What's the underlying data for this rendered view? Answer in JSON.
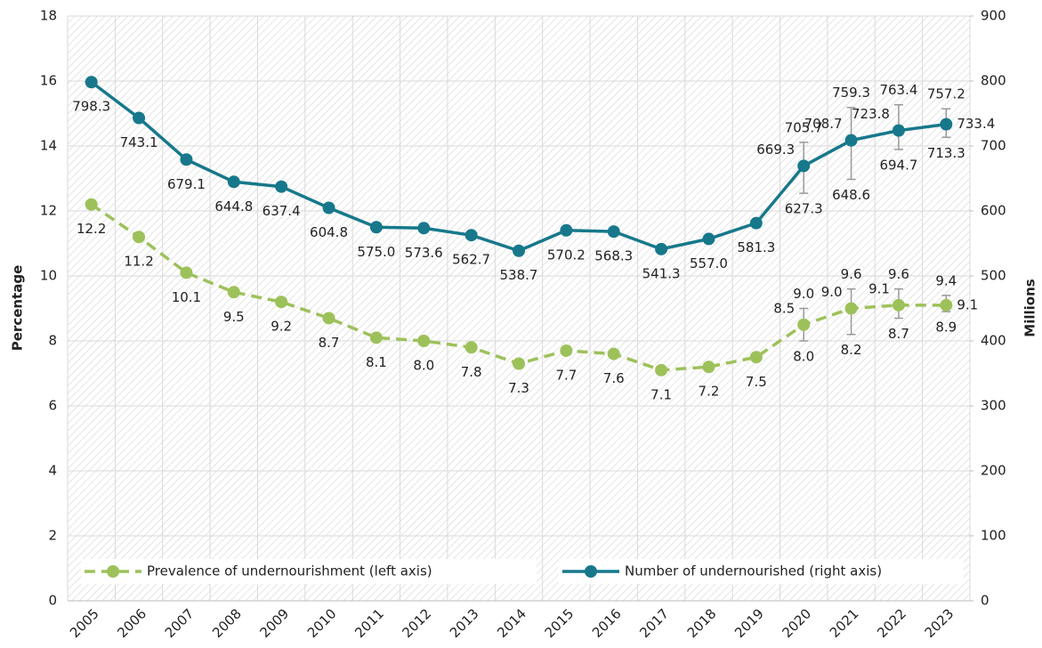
{
  "chart_data": {
    "type": "line",
    "categories": [
      "2005",
      "2006",
      "2007",
      "2008",
      "2009",
      "2010",
      "2011",
      "2012",
      "2013",
      "2014",
      "2015",
      "2016",
      "2017",
      "2018",
      "2019",
      "2020",
      "2021",
      "2022",
      "2023"
    ],
    "series": [
      {
        "name": "Prevalence of undernourishment (left axis)",
        "color": "#9dc15a",
        "dashed": true,
        "axis": "y",
        "values": [
          12.2,
          11.2,
          10.1,
          9.5,
          9.2,
          8.7,
          8.1,
          8.0,
          7.8,
          7.3,
          7.7,
          7.6,
          7.1,
          7.2,
          7.5,
          8.5,
          9.0,
          9.1,
          9.1
        ],
        "value_labels": [
          "12.2",
          "11.2",
          "10.1",
          "9.5",
          "9.2",
          "8.7",
          "8.1",
          "8.0",
          "7.8",
          "7.3",
          "7.7",
          "7.6",
          "7.1",
          "7.2",
          "7.5",
          "8.5",
          "9.0",
          "9.1",
          "9.1"
        ],
        "upper": [
          null,
          null,
          null,
          null,
          null,
          null,
          null,
          null,
          null,
          null,
          null,
          null,
          null,
          null,
          null,
          9.0,
          9.6,
          9.6,
          9.4
        ],
        "upper_labels": [
          null,
          null,
          null,
          null,
          null,
          null,
          null,
          null,
          null,
          null,
          null,
          null,
          null,
          null,
          null,
          "9.0",
          "9.6",
          "9.6",
          "9.4"
        ],
        "lower": [
          null,
          null,
          null,
          null,
          null,
          null,
          null,
          null,
          null,
          null,
          null,
          null,
          null,
          null,
          null,
          8.0,
          8.2,
          8.7,
          8.9
        ],
        "lower_labels": [
          null,
          null,
          null,
          null,
          null,
          null,
          null,
          null,
          null,
          null,
          null,
          null,
          null,
          null,
          null,
          "8.0",
          "8.2",
          "8.7",
          "8.9"
        ]
      },
      {
        "name": "Number of undernourished (right axis)",
        "color": "#17788b",
        "dashed": false,
        "axis": "y2",
        "values": [
          798.3,
          743.1,
          679.1,
          644.8,
          637.4,
          604.8,
          575.0,
          573.6,
          562.7,
          538.7,
          570.2,
          568.3,
          541.3,
          557.0,
          581.3,
          669.3,
          708.7,
          723.8,
          733.4
        ],
        "value_labels": [
          "798.3",
          "743.1",
          "679.1",
          "644.8",
          "637.4",
          "604.8",
          "575.0",
          "573.6",
          "562.7",
          "538.7",
          "570.2",
          "568.3",
          "541.3",
          "557.0",
          "581.3",
          "669.3",
          "708.7",
          "723.8",
          "733.4"
        ],
        "upper": [
          null,
          null,
          null,
          null,
          null,
          null,
          null,
          null,
          null,
          null,
          null,
          null,
          null,
          null,
          null,
          705.7,
          759.3,
          763.4,
          757.2
        ],
        "upper_labels": [
          null,
          null,
          null,
          null,
          null,
          null,
          null,
          null,
          null,
          null,
          null,
          null,
          null,
          null,
          null,
          "705.7",
          "759.3",
          "763.4",
          "757.2"
        ],
        "lower": [
          null,
          null,
          null,
          null,
          null,
          null,
          null,
          null,
          null,
          null,
          null,
          null,
          null,
          null,
          null,
          627.3,
          648.6,
          694.7,
          713.3
        ],
        "lower_labels": [
          null,
          null,
          null,
          null,
          null,
          null,
          null,
          null,
          null,
          null,
          null,
          null,
          null,
          null,
          null,
          "627.3",
          "648.6",
          "694.7",
          "713.3"
        ]
      }
    ],
    "ylim": [
      0,
      18
    ],
    "yticks": [
      0,
      2,
      4,
      6,
      8,
      10,
      12,
      14,
      16,
      18
    ],
    "y2lim": [
      0,
      900
    ],
    "y2ticks": [
      0,
      100,
      200,
      300,
      400,
      500,
      600,
      700,
      800,
      900
    ],
    "y_label": "Percentage",
    "y2_label": "Millions",
    "grid": true,
    "legend": "bottom"
  }
}
